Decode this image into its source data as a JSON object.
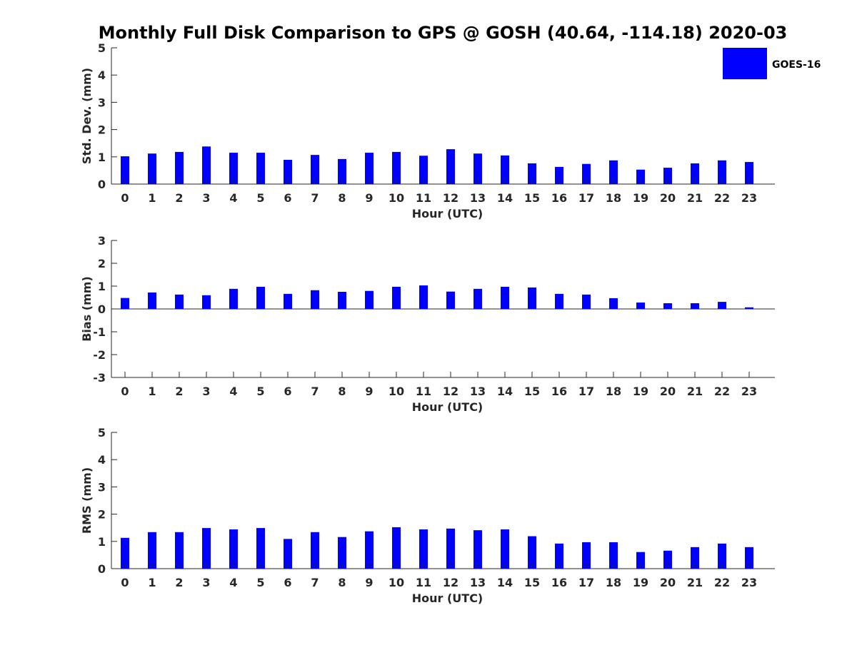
{
  "chart_data": {
    "title": "Monthly Full Disk Comparison to GPS @ GOSH (40.64, -114.18) 2020-03",
    "legend": {
      "label": "GOES-16",
      "color": "#0000ff",
      "placement": "top-right"
    },
    "bar_color": "#0000ff",
    "panels": [
      {
        "type": "bar",
        "ylabel": "Std. Dev. (mm)",
        "xlabel": "Hour (UTC)",
        "ylim": [
          0,
          5
        ],
        "yticks": [
          "0",
          "1",
          "2",
          "3",
          "4",
          "5"
        ],
        "categories": [
          "0",
          "1",
          "2",
          "3",
          "4",
          "5",
          "6",
          "7",
          "8",
          "9",
          "10",
          "11",
          "12",
          "13",
          "14",
          "15",
          "16",
          "17",
          "18",
          "19",
          "20",
          "21",
          "22",
          "23"
        ],
        "series": [
          {
            "name": "GOES-16",
            "values": [
              1.02,
              1.12,
              1.18,
              1.38,
              1.15,
              1.15,
              0.89,
              1.07,
              0.92,
              1.15,
              1.18,
              1.04,
              1.28,
              1.12,
              1.05,
              0.76,
              0.63,
              0.74,
              0.87,
              0.53,
              0.6,
              0.76,
              0.87,
              0.81
            ]
          }
        ]
      },
      {
        "type": "bar",
        "ylabel": "Bias (mm)",
        "xlabel": "Hour (UTC)",
        "ylim": [
          -3,
          3
        ],
        "yticks": [
          "-3",
          "-2",
          "-1",
          "0",
          "1",
          "2",
          "3"
        ],
        "categories": [
          "0",
          "1",
          "2",
          "3",
          "4",
          "5",
          "6",
          "7",
          "8",
          "9",
          "10",
          "11",
          "12",
          "13",
          "14",
          "15",
          "16",
          "17",
          "18",
          "19",
          "20",
          "21",
          "22",
          "23"
        ],
        "series": [
          {
            "name": "GOES-16",
            "values": [
              0.48,
              0.72,
              0.63,
              0.6,
              0.88,
              0.97,
              0.66,
              0.82,
              0.75,
              0.79,
              0.97,
              1.03,
              0.76,
              0.88,
              0.97,
              0.94,
              0.66,
              0.63,
              0.47,
              0.28,
              0.25,
              0.25,
              0.31,
              0.07
            ]
          }
        ]
      },
      {
        "type": "bar",
        "ylabel": "RMS (mm)",
        "xlabel": "Hour (UTC)",
        "ylim": [
          0,
          5
        ],
        "yticks": [
          "0",
          "1",
          "2",
          "3",
          "4",
          "5"
        ],
        "categories": [
          "0",
          "1",
          "2",
          "3",
          "4",
          "5",
          "6",
          "7",
          "8",
          "9",
          "10",
          "11",
          "12",
          "13",
          "14",
          "15",
          "16",
          "17",
          "18",
          "19",
          "20",
          "21",
          "22",
          "23"
        ],
        "series": [
          {
            "name": "GOES-16",
            "values": [
              1.13,
              1.34,
              1.34,
              1.49,
              1.44,
              1.49,
              1.09,
              1.34,
              1.16,
              1.37,
              1.52,
              1.44,
              1.47,
              1.41,
              1.44,
              1.19,
              0.92,
              0.97,
              0.97,
              0.61,
              0.66,
              0.79,
              0.92,
              0.79
            ]
          }
        ]
      }
    ]
  }
}
